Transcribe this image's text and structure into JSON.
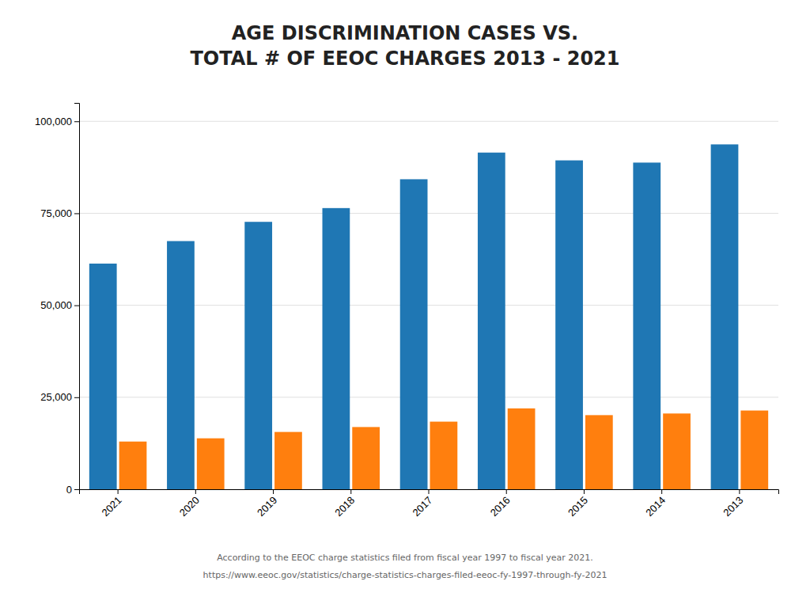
{
  "chart_data": {
    "type": "bar",
    "title": "AGE DISCRIMINATION CASES VS.\nTOTAL # OF EEOC CHARGES 2013 - 2021",
    "categories": [
      "2021",
      "2020",
      "2019",
      "2018",
      "2017",
      "2016",
      "2015",
      "2014",
      "2013"
    ],
    "series": [
      {
        "values": [
          61331,
          67448,
          72675,
          76418,
          84254,
          91503,
          89385,
          88778,
          93727
        ]
      },
      {
        "values": [
          12965,
          13846,
          15573,
          16911,
          18376,
          21979,
          20144,
          20588,
          21396
        ]
      }
    ],
    "ylim": [
      0,
      105000
    ],
    "yticks": [
      0,
      {
        "value": 25000,
        "label": "25,000"
      },
      {
        "value": 50000,
        "label": "50,000"
      },
      {
        "value": 75000,
        "label": "75,000"
      },
      {
        "value": 100000,
        "label": "100,000"
      }
    ],
    "grid": true,
    "annotations": [
      "According to the EEOC charge statistics filed from fiscal year 1997 to fiscal year 2021.",
      "https://www.eeoc.gov/statistics/charge-statistics-charges-filed-eeoc-fy-1997-through-fy-2021"
    ]
  }
}
